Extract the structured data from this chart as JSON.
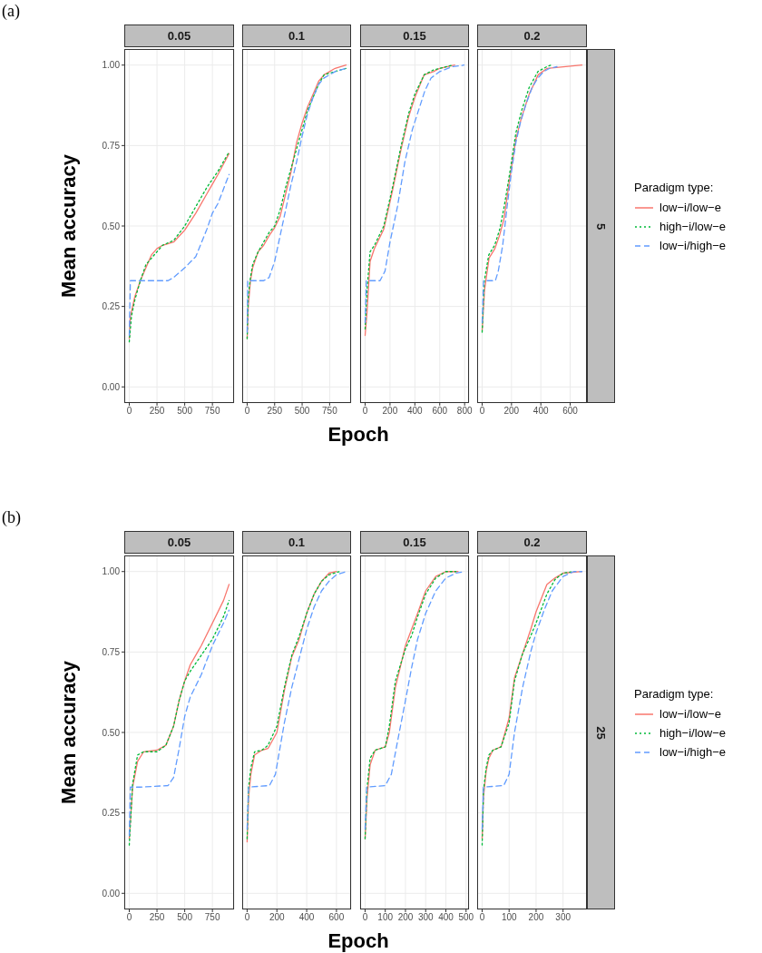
{
  "chart_data": [
    {
      "type": "line",
      "title": "0.05",
      "annotations": [
        "(a)"
      ],
      "xlabel": "Epoch",
      "ylabel": "Mean accuracy",
      "xlim": [
        -45,
        945
      ],
      "xticks": [
        0,
        250,
        500,
        750
      ],
      "ylim": [
        -0.05,
        1.05
      ],
      "yticks": [
        {
          "value": 0,
          "label": "0.00"
        },
        {
          "value": 0.25,
          "label": "0.25"
        },
        {
          "value": 0.5,
          "label": "0.50"
        },
        {
          "value": 0.75,
          "label": "0.75"
        },
        {
          "value": 1,
          "label": "1.00"
        }
      ],
      "grid": true,
      "series": [
        {
          "color": "#f8766d",
          "line_style": "solid",
          "x": [
            0,
            10,
            50,
            100,
            150,
            200,
            250,
            300,
            400,
            500,
            600,
            700,
            750,
            800,
            900
          ],
          "values": [
            0.15,
            0.22,
            0.28,
            0.33,
            0.37,
            0.41,
            0.43,
            0.44,
            0.45,
            0.487,
            0.54,
            0.6,
            0.63,
            0.66,
            0.725
          ]
        },
        {
          "color": "#00ba38",
          "line_style": "dotted",
          "x": [
            0,
            20,
            50,
            100,
            150,
            200,
            250,
            300,
            400,
            500,
            600,
            700,
            800,
            900
          ],
          "values": [
            0.14,
            0.22,
            0.27,
            0.33,
            0.38,
            0.4,
            0.42,
            0.44,
            0.455,
            0.5,
            0.56,
            0.62,
            0.67,
            0.73
          ]
        },
        {
          "color": "#619cff",
          "line_style": "dashed",
          "x": [
            0,
            10,
            20,
            200,
            350,
            400,
            500,
            600,
            700,
            750,
            800,
            900
          ],
          "values": [
            0.16,
            0.33,
            0.33,
            0.33,
            0.33,
            0.34,
            0.37,
            0.405,
            0.49,
            0.54,
            0.57,
            0.66
          ]
        }
      ]
    },
    {
      "type": "line",
      "title": "0.1",
      "tick_labels": "x",
      "xlim": [
        -45,
        945
      ],
      "xticks": [
        0,
        250,
        500,
        750
      ],
      "ylim": [
        -0.05,
        1.05
      ],
      "yticks": [
        0,
        0.25,
        0.5,
        0.75,
        1
      ],
      "grid": true,
      "series": [
        {
          "color": "#f8766d",
          "line_style": "solid",
          "x": [
            0,
            10,
            30,
            50,
            100,
            150,
            200,
            250,
            300,
            350,
            400,
            450,
            500,
            550,
            600,
            650,
            700,
            800,
            900
          ],
          "values": [
            0.15,
            0.25,
            0.33,
            0.37,
            0.42,
            0.44,
            0.47,
            0.495,
            0.53,
            0.6,
            0.67,
            0.76,
            0.82,
            0.87,
            0.91,
            0.95,
            0.97,
            0.99,
            1.0
          ]
        },
        {
          "color": "#00ba38",
          "line_style": "dotted",
          "x": [
            0,
            10,
            30,
            50,
            100,
            150,
            200,
            250,
            300,
            350,
            400,
            450,
            500,
            550,
            600,
            650,
            700,
            800,
            900
          ],
          "values": [
            0.15,
            0.28,
            0.34,
            0.38,
            0.42,
            0.45,
            0.48,
            0.5,
            0.55,
            0.62,
            0.68,
            0.74,
            0.8,
            0.86,
            0.9,
            0.94,
            0.97,
            0.98,
            0.99
          ]
        },
        {
          "color": "#619cff",
          "line_style": "dashed",
          "x": [
            0,
            5,
            150,
            200,
            250,
            300,
            350,
            400,
            450,
            500,
            550,
            600,
            650,
            700,
            800,
            900
          ],
          "values": [
            0.17,
            0.33,
            0.33,
            0.34,
            0.39,
            0.47,
            0.55,
            0.63,
            0.7,
            0.78,
            0.85,
            0.9,
            0.94,
            0.96,
            0.98,
            0.99
          ]
        }
      ]
    },
    {
      "type": "line",
      "title": "0.15",
      "tick_labels": "x",
      "xlim": [
        -40,
        835
      ],
      "xticks": [
        0,
        200,
        400,
        600,
        800
      ],
      "ylim": [
        -0.05,
        1.05
      ],
      "yticks": [
        0,
        0.25,
        0.5,
        0.75,
        1
      ],
      "grid": true,
      "series": [
        {
          "color": "#f8766d",
          "line_style": "solid",
          "x": [
            0,
            15,
            40,
            75,
            150,
            220,
            290,
            350,
            400,
            475,
            550,
            600,
            720
          ],
          "values": [
            0.16,
            0.23,
            0.39,
            0.43,
            0.49,
            0.61,
            0.74,
            0.84,
            0.9,
            0.97,
            0.98,
            0.99,
            1.0
          ]
        },
        {
          "color": "#00ba38",
          "line_style": "dotted",
          "x": [
            0,
            15,
            40,
            75,
            150,
            220,
            290,
            350,
            400,
            475,
            550,
            600,
            700
          ],
          "values": [
            0.18,
            0.3,
            0.42,
            0.44,
            0.5,
            0.62,
            0.75,
            0.85,
            0.91,
            0.97,
            0.985,
            0.99,
            1.0
          ]
        },
        {
          "color": "#619cff",
          "line_style": "dashed",
          "x": [
            0,
            10,
            120,
            160,
            200,
            260,
            320,
            380,
            430,
            480,
            530,
            600,
            700,
            795
          ],
          "values": [
            0.2,
            0.33,
            0.33,
            0.36,
            0.45,
            0.56,
            0.7,
            0.8,
            0.86,
            0.92,
            0.96,
            0.98,
            0.995,
            1.0
          ]
        }
      ]
    },
    {
      "type": "line",
      "title": "0.2",
      "tick_labels": "x",
      "annotations": [
        "5"
      ],
      "legend": "right",
      "legend_title": "Paradigm type:",
      "xlim": [
        -34,
        714
      ],
      "xticks": [
        0,
        200,
        400,
        600
      ],
      "ylim": [
        -0.05,
        1.05
      ],
      "yticks": [
        0,
        0.25,
        0.5,
        0.75,
        1
      ],
      "grid": true,
      "series": [
        {
          "name": "low−i/low−e",
          "color": "#f8766d",
          "line_style": "solid",
          "x": [
            0,
            16,
            47,
            87,
            118,
            148,
            189,
            230,
            270,
            321,
            382,
            443,
            680
          ],
          "values": [
            0.175,
            0.3,
            0.4,
            0.43,
            0.47,
            0.52,
            0.65,
            0.77,
            0.84,
            0.91,
            0.97,
            0.99,
            1.0
          ]
        },
        {
          "name": "high−i/low−e",
          "color": "#00ba38",
          "line_style": "dotted",
          "x": [
            0,
            15,
            45,
            85,
            120,
            150,
            190,
            230,
            270,
            320,
            380,
            440,
            470
          ],
          "values": [
            0.17,
            0.33,
            0.41,
            0.44,
            0.49,
            0.56,
            0.67,
            0.79,
            0.86,
            0.93,
            0.98,
            0.995,
            1.0
          ]
        },
        {
          "name": "low−i/high−e",
          "color": "#619cff",
          "line_style": "dashed",
          "x": [
            0,
            10,
            90,
            110,
            140,
            170,
            200,
            230,
            260,
            300,
            340,
            380,
            420,
            460,
            510
          ],
          "values": [
            0.2,
            0.33,
            0.33,
            0.36,
            0.44,
            0.56,
            0.67,
            0.76,
            0.82,
            0.88,
            0.93,
            0.96,
            0.98,
            0.99,
            0.995
          ]
        }
      ]
    },
    {
      "type": "line",
      "title": "0.05",
      "annotations": [
        "(b)"
      ],
      "xlabel": "Epoch",
      "ylabel": "Mean accuracy",
      "xlim": [
        -45,
        945
      ],
      "xticks": [
        0,
        250,
        500,
        750
      ],
      "ylim": [
        -0.05,
        1.05
      ],
      "yticks": [
        {
          "value": 0,
          "label": "0.00"
        },
        {
          "value": 0.25,
          "label": "0.25"
        },
        {
          "value": 0.5,
          "label": "0.50"
        },
        {
          "value": 0.75,
          "label": "0.75"
        },
        {
          "value": 1,
          "label": "1.00"
        }
      ],
      "grid": true,
      "series": [
        {
          "color": "#f8766d",
          "line_style": "solid",
          "x": [
            0,
            30,
            75,
            130,
            250,
            330,
            400,
            450,
            500,
            550,
            600,
            650,
            750,
            850,
            900
          ],
          "values": [
            0.17,
            0.33,
            0.41,
            0.44,
            0.445,
            0.46,
            0.52,
            0.6,
            0.66,
            0.71,
            0.74,
            0.77,
            0.84,
            0.91,
            0.96
          ]
        },
        {
          "color": "#00ba38",
          "line_style": "dotted",
          "x": [
            0,
            30,
            75,
            130,
            250,
            330,
            400,
            450,
            500,
            550,
            650,
            750,
            850,
            900
          ],
          "values": [
            0.15,
            0.34,
            0.43,
            0.44,
            0.44,
            0.46,
            0.52,
            0.6,
            0.66,
            0.69,
            0.74,
            0.79,
            0.86,
            0.91
          ]
        },
        {
          "color": "#619cff",
          "line_style": "dashed",
          "x": [
            0,
            10,
            100,
            350,
            400,
            450,
            500,
            550,
            650,
            750,
            850,
            900
          ],
          "values": [
            0.18,
            0.33,
            0.33,
            0.335,
            0.36,
            0.45,
            0.55,
            0.61,
            0.68,
            0.77,
            0.84,
            0.88
          ]
        }
      ]
    },
    {
      "type": "line",
      "title": "0.1",
      "tick_labels": "x",
      "xlim": [
        -33,
        698
      ],
      "xticks": [
        0,
        200,
        400,
        600
      ],
      "ylim": [
        -0.05,
        1.05
      ],
      "yticks": [
        0,
        0.25,
        0.5,
        0.75,
        1
      ],
      "grid": true,
      "series": [
        {
          "color": "#f8766d",
          "line_style": "solid",
          "x": [
            0,
            10,
            25,
            50,
            100,
            140,
            200,
            250,
            300,
            350,
            400,
            450,
            500,
            550,
            600
          ],
          "values": [
            0.16,
            0.3,
            0.37,
            0.43,
            0.445,
            0.45,
            0.5,
            0.63,
            0.735,
            0.79,
            0.87,
            0.93,
            0.97,
            0.995,
            1.0
          ]
        },
        {
          "color": "#00ba38",
          "line_style": "dotted",
          "x": [
            0,
            10,
            25,
            50,
            100,
            140,
            200,
            250,
            300,
            350,
            400,
            450,
            500,
            550,
            620
          ],
          "values": [
            0.17,
            0.33,
            0.39,
            0.44,
            0.445,
            0.46,
            0.52,
            0.64,
            0.74,
            0.8,
            0.87,
            0.93,
            0.97,
            0.99,
            1.0
          ]
        },
        {
          "color": "#619cff",
          "line_style": "dashed",
          "x": [
            0,
            10,
            150,
            190,
            220,
            250,
            300,
            350,
            400,
            450,
            500,
            550,
            600,
            665
          ],
          "values": [
            0.2,
            0.33,
            0.335,
            0.37,
            0.45,
            0.53,
            0.64,
            0.73,
            0.82,
            0.89,
            0.94,
            0.97,
            0.99,
            1.0
          ]
        }
      ]
    },
    {
      "type": "line",
      "title": "0.15",
      "tick_labels": "x",
      "xlim": [
        -24.5,
        514.5
      ],
      "xticks": [
        0,
        100,
        200,
        300,
        400,
        500
      ],
      "ylim": [
        -0.05,
        1.05
      ],
      "yticks": [
        0,
        0.25,
        0.5,
        0.75,
        1
      ],
      "grid": true,
      "series": [
        {
          "color": "#f8766d",
          "line_style": "solid",
          "x": [
            0,
            10,
            25,
            50,
            100,
            120,
            150,
            200,
            230,
            260,
            300,
            350,
            400,
            460
          ],
          "values": [
            0.17,
            0.3,
            0.4,
            0.445,
            0.455,
            0.5,
            0.64,
            0.77,
            0.82,
            0.87,
            0.94,
            0.985,
            1.0,
            1.0
          ]
        },
        {
          "color": "#00ba38",
          "line_style": "dotted",
          "x": [
            0,
            10,
            25,
            50,
            100,
            120,
            150,
            200,
            230,
            260,
            300,
            350,
            400,
            450
          ],
          "values": [
            0.17,
            0.33,
            0.42,
            0.445,
            0.455,
            0.52,
            0.66,
            0.76,
            0.8,
            0.86,
            0.93,
            0.98,
            1.0,
            1.0
          ]
        },
        {
          "color": "#619cff",
          "line_style": "dashed",
          "x": [
            0,
            8,
            100,
            130,
            160,
            200,
            230,
            260,
            300,
            350,
            400,
            450,
            490
          ],
          "values": [
            0.2,
            0.33,
            0.335,
            0.37,
            0.47,
            0.6,
            0.7,
            0.79,
            0.87,
            0.94,
            0.98,
            0.995,
            1.0
          ]
        }
      ]
    },
    {
      "type": "line",
      "title": "0.2",
      "tick_labels": "x",
      "annotations": [
        "25"
      ],
      "legend": "right",
      "legend_title": "Paradigm type:",
      "xlim": [
        -18.5,
        388.5
      ],
      "xticks": [
        0,
        100,
        200,
        300
      ],
      "ylim": [
        -0.05,
        1.05
      ],
      "yticks": [
        0,
        0.25,
        0.5,
        0.75,
        1
      ],
      "grid": true,
      "series": [
        {
          "name": "low−i/low−e",
          "color": "#f8766d",
          "line_style": "solid",
          "x": [
            0,
            5,
            15,
            25,
            40,
            70,
            100,
            120,
            150,
            180,
            200,
            240,
            270,
            300,
            370
          ],
          "values": [
            0.17,
            0.3,
            0.38,
            0.42,
            0.445,
            0.455,
            0.545,
            0.67,
            0.745,
            0.82,
            0.875,
            0.96,
            0.98,
            0.995,
            1.0
          ]
        },
        {
          "name": "high−i/low−e",
          "color": "#00ba38",
          "line_style": "dotted",
          "x": [
            0,
            5,
            15,
            25,
            40,
            70,
            100,
            120,
            150,
            180,
            200,
            240,
            270,
            300,
            340
          ],
          "values": [
            0.15,
            0.32,
            0.39,
            0.43,
            0.445,
            0.455,
            0.53,
            0.66,
            0.745,
            0.8,
            0.84,
            0.93,
            0.975,
            0.995,
            1.0
          ]
        },
        {
          "name": "low−i/high−e",
          "color": "#619cff",
          "line_style": "dashed",
          "x": [
            0,
            5,
            80,
            100,
            120,
            150,
            180,
            200,
            230,
            260,
            300,
            340,
            370
          ],
          "values": [
            0.2,
            0.33,
            0.335,
            0.37,
            0.5,
            0.64,
            0.75,
            0.81,
            0.88,
            0.94,
            0.985,
            1.0,
            1.0
          ]
        }
      ]
    }
  ]
}
